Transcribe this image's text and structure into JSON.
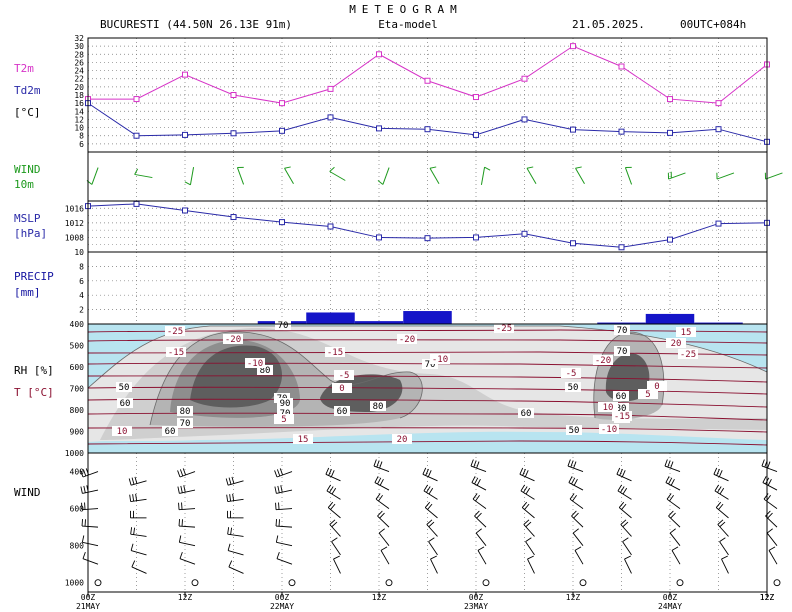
{
  "header": {
    "title": "METEOGRAM",
    "station": "BUCURESTI (44.50N 26.13E  91m)",
    "model": "Eta-model",
    "date": "21.05.2025.",
    "run": "00UTC+084h"
  },
  "panel_labels": {
    "temp_a": "T2m",
    "temp_b": "Td2m",
    "temp_unit": "[°C]",
    "wind_a": "WIND",
    "wind_b": "10m",
    "mslp_a": "MSLP",
    "mslp_b": "[hPa]",
    "precip_a": "PRECIP",
    "precip_b": "[mm]",
    "rh_a": "RH [%]",
    "rh_b": "T [°C]",
    "wind_profile": "WIND"
  },
  "colors": {
    "t2m": "#d633c7",
    "td2m": "#2a2aa8",
    "wind10m": "#1e9a1e",
    "mslp": "#2a2aa8",
    "precip": "#1414c8",
    "temp_isoline": "#8a1030",
    "cold_fill": "#b8e4f0",
    "rh_shades": [
      "#e6e6e6",
      "#cfcfcf",
      "#b4b4b4",
      "#8e8e8e",
      "#5e5e5e"
    ]
  },
  "time_axis": {
    "ticks": [
      "00Z",
      "12Z",
      "00Z",
      "12Z",
      "00Z",
      "12Z",
      "00Z",
      "12Z"
    ],
    "days": [
      {
        "label": "21MAY",
        "tick": 0
      },
      {
        "label": "22MAY",
        "tick": 2
      },
      {
        "label": "23MAY",
        "tick": 4
      },
      {
        "label": "24MAY",
        "tick": 6
      }
    ]
  },
  "chart_data": [
    {
      "type": "line",
      "name": "temperature",
      "x_hours": [
        0,
        6,
        12,
        18,
        24,
        30,
        36,
        42,
        48,
        54,
        60,
        66,
        72,
        78,
        84
      ],
      "series": [
        {
          "name": "T2m",
          "values": [
            17,
            17,
            23,
            18,
            16,
            19.5,
            28,
            21.5,
            17.5,
            22,
            30,
            25,
            17,
            16,
            25.5
          ]
        },
        {
          "name": "Td2m",
          "values": [
            16,
            8,
            8.2,
            8.6,
            9.2,
            12.5,
            9.8,
            9.6,
            8.2,
            12,
            9.5,
            9,
            8.7,
            9.6,
            6.5
          ]
        }
      ],
      "ylim": [
        4,
        32
      ],
      "yticks": [
        "6",
        "8",
        "10",
        "12",
        "14",
        "16",
        "18",
        "20",
        "22",
        "24",
        "26",
        "28",
        "30",
        "32"
      ]
    },
    {
      "type": "scatter",
      "name": "wind10m",
      "x_hours": [
        0,
        6,
        12,
        18,
        24,
        30,
        36,
        42,
        48,
        54,
        60,
        66,
        72,
        78,
        84
      ],
      "direction_deg": [
        200,
        280,
        190,
        340,
        330,
        300,
        200,
        330,
        10,
        330,
        330,
        340,
        250,
        250,
        250
      ],
      "speed_kt": [
        5,
        5,
        5,
        5,
        5,
        5,
        5,
        5,
        5,
        5,
        5,
        5,
        10,
        5,
        5
      ]
    },
    {
      "type": "line",
      "name": "mslp",
      "x_hours": [
        0,
        6,
        12,
        18,
        24,
        30,
        36,
        42,
        48,
        54,
        60,
        66,
        72,
        78,
        84
      ],
      "series": [
        {
          "name": "MSLP",
          "values": [
            1016.6,
            1017.2,
            1015.4,
            1013.6,
            1012.2,
            1011.0,
            1008.0,
            1007.8,
            1008.0,
            1009.0,
            1006.4,
            1005.3,
            1007.4,
            1011.8,
            1012.0
          ]
        }
      ],
      "ylim": [
        1004,
        1018
      ],
      "yticks": [
        "1008",
        "1012",
        "1016"
      ]
    },
    {
      "type": "bar",
      "name": "precip",
      "bars": [
        {
          "from_h": 21,
          "to_h": 27,
          "value": 0.4
        },
        {
          "from_h": 27,
          "to_h": 33,
          "value": 1.6
        },
        {
          "from_h": 33,
          "to_h": 39,
          "value": 0.4
        },
        {
          "from_h": 39,
          "to_h": 45,
          "value": 1.8
        },
        {
          "from_h": 63,
          "to_h": 69,
          "value": 0.2
        },
        {
          "from_h": 69,
          "to_h": 75,
          "value": 1.4
        },
        {
          "from_h": 75,
          "to_h": 81,
          "value": 0.2
        }
      ],
      "ylim": [
        0,
        10
      ],
      "yticks": [
        "2",
        "4",
        "6",
        "8",
        "10"
      ]
    },
    {
      "type": "heatmap",
      "name": "rh_temperature_cross_section",
      "yticks": [
        "400",
        "500",
        "600",
        "700",
        "800",
        "900",
        "1000"
      ],
      "rh_labels": [
        "70",
        "80",
        "70",
        "50",
        "60",
        "80",
        "70",
        "60",
        "80",
        "70",
        "60",
        "50",
        "70",
        "70",
        "60",
        "50",
        "80",
        "90",
        "70",
        "60",
        "50"
      ],
      "temp_labels": [
        "-25",
        "-20",
        "-15",
        "-10",
        "-5",
        "0",
        "5",
        "10",
        "15",
        "20",
        "-25",
        "-20",
        "-15",
        "-10",
        "-5",
        "0",
        "5",
        "10",
        "15",
        "20",
        "-25",
        "-20",
        "-15",
        "-10",
        "15",
        "20"
      ]
    },
    {
      "type": "scatter",
      "name": "wind_profile",
      "yticks": [
        "400",
        "600",
        "800",
        "1000"
      ]
    }
  ]
}
